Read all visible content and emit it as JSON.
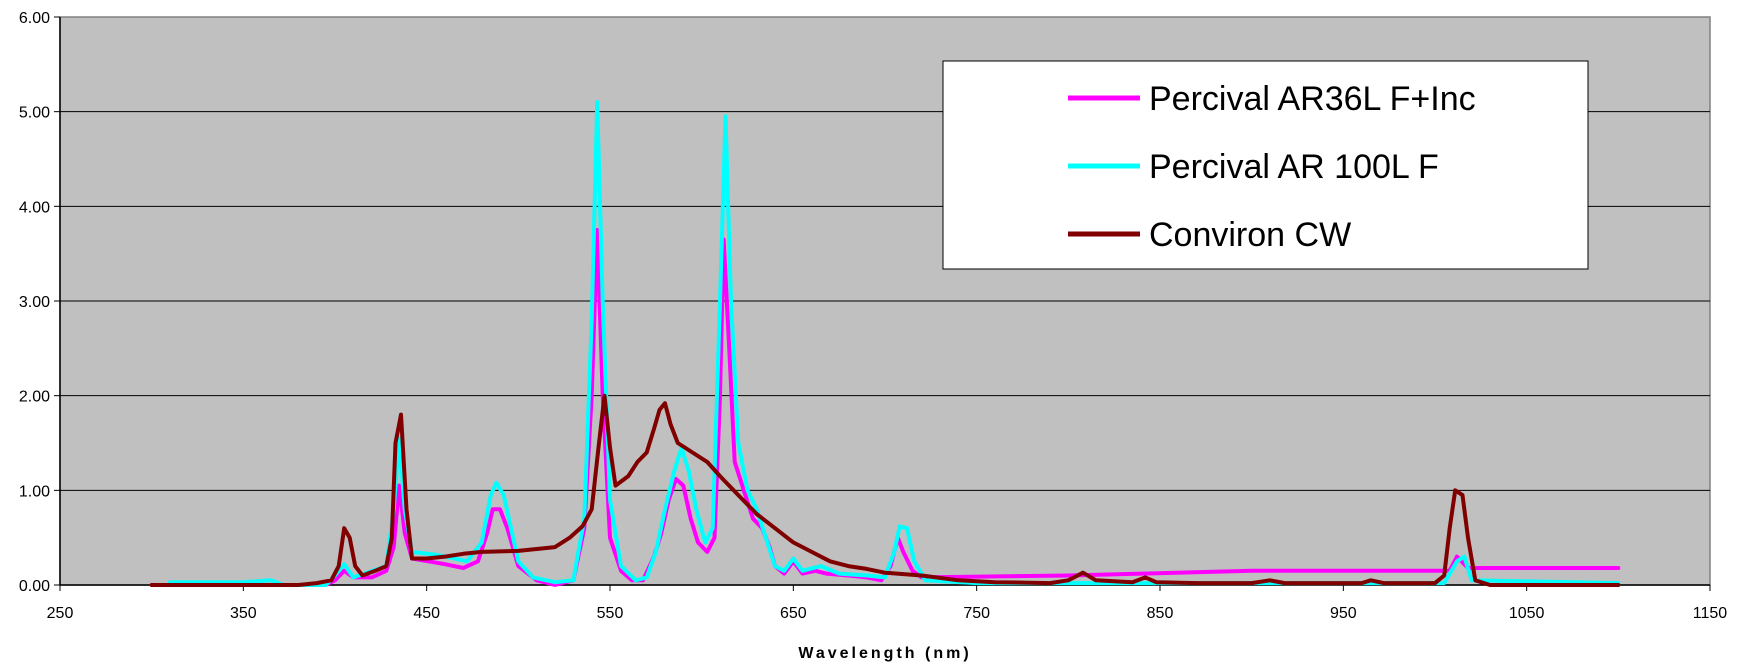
{
  "chart_data": {
    "type": "line",
    "title": "",
    "xlabel": "Wavelength (nm)",
    "ylabel": "",
    "xlim": [
      250,
      1150
    ],
    "ylim": [
      0,
      6
    ],
    "x_ticks": [
      "250",
      "350",
      "450",
      "550",
      "650",
      "750",
      "850",
      "950",
      "1050",
      "1150"
    ],
    "y_ticks": [
      "0.00",
      "1.00",
      "2.00",
      "3.00",
      "4.00",
      "5.00",
      "6.00"
    ],
    "grid": "horizontal major",
    "plot_background": "#c0c0c0",
    "legend_position": "top-right",
    "series": [
      {
        "name": "Percival AR36L F+Inc",
        "color": "#ff00ff",
        "points": [
          [
            300,
            0
          ],
          [
            395,
            0
          ],
          [
            400,
            0.05
          ],
          [
            405,
            0.15
          ],
          [
            410,
            0.08
          ],
          [
            420,
            0.08
          ],
          [
            428,
            0.15
          ],
          [
            432,
            0.4
          ],
          [
            435,
            1.05
          ],
          [
            438,
            0.55
          ],
          [
            442,
            0.28
          ],
          [
            460,
            0.22
          ],
          [
            470,
            0.18
          ],
          [
            478,
            0.25
          ],
          [
            483,
            0.55
          ],
          [
            486,
            0.8
          ],
          [
            490,
            0.8
          ],
          [
            494,
            0.6
          ],
          [
            500,
            0.2
          ],
          [
            510,
            0.05
          ],
          [
            520,
            0
          ],
          [
            530,
            0.05
          ],
          [
            536,
            0.6
          ],
          [
            540,
            2.0
          ],
          [
            543,
            3.75
          ],
          [
            546,
            2.0
          ],
          [
            550,
            0.5
          ],
          [
            556,
            0.15
          ],
          [
            562,
            0.05
          ],
          [
            568,
            0.05
          ],
          [
            574,
            0.3
          ],
          [
            578,
            0.55
          ],
          [
            582,
            0.9
          ],
          [
            586,
            1.12
          ],
          [
            590,
            1.05
          ],
          [
            594,
            0.7
          ],
          [
            598,
            0.45
          ],
          [
            603,
            0.35
          ],
          [
            607,
            0.5
          ],
          [
            610,
            2.0
          ],
          [
            612,
            3.65
          ],
          [
            615,
            2.5
          ],
          [
            618,
            1.3
          ],
          [
            623,
            1.0
          ],
          [
            628,
            0.7
          ],
          [
            633,
            0.6
          ],
          [
            637,
            0.4
          ],
          [
            640,
            0.2
          ],
          [
            645,
            0.12
          ],
          [
            650,
            0.25
          ],
          [
            655,
            0.12
          ],
          [
            662,
            0.15
          ],
          [
            668,
            0.12
          ],
          [
            680,
            0.1
          ],
          [
            690,
            0.08
          ],
          [
            698,
            0.05
          ],
          [
            703,
            0.2
          ],
          [
            707,
            0.5
          ],
          [
            710,
            0.35
          ],
          [
            715,
            0.15
          ],
          [
            720,
            0.08
          ],
          [
            800,
            0.1
          ],
          [
            840,
            0.12
          ],
          [
            900,
            0.15
          ],
          [
            1008,
            0.15
          ],
          [
            1012,
            0.3
          ],
          [
            1018,
            0.18
          ],
          [
            1100,
            0.18
          ]
        ]
      },
      {
        "name": "Percival AR 100L F",
        "color": "#00ffff",
        "points": [
          [
            310,
            0.03
          ],
          [
            350,
            0.03
          ],
          [
            365,
            0.05
          ],
          [
            372,
            0
          ],
          [
            395,
            0
          ],
          [
            400,
            0.1
          ],
          [
            405,
            0.22
          ],
          [
            410,
            0.08
          ],
          [
            428,
            0.2
          ],
          [
            432,
            0.8
          ],
          [
            435,
            1.55
          ],
          [
            438,
            0.8
          ],
          [
            442,
            0.35
          ],
          [
            455,
            0.32
          ],
          [
            465,
            0.28
          ],
          [
            472,
            0.25
          ],
          [
            480,
            0.45
          ],
          [
            485,
            0.95
          ],
          [
            488,
            1.08
          ],
          [
            492,
            0.95
          ],
          [
            496,
            0.6
          ],
          [
            500,
            0.25
          ],
          [
            508,
            0.08
          ],
          [
            520,
            0.03
          ],
          [
            530,
            0.05
          ],
          [
            536,
            0.7
          ],
          [
            540,
            2.8
          ],
          [
            543,
            5.1
          ],
          [
            546,
            3.0
          ],
          [
            550,
            0.9
          ],
          [
            556,
            0.2
          ],
          [
            564,
            0.05
          ],
          [
            570,
            0.08
          ],
          [
            575,
            0.35
          ],
          [
            580,
            0.8
          ],
          [
            585,
            1.2
          ],
          [
            589,
            1.45
          ],
          [
            593,
            1.2
          ],
          [
            597,
            0.8
          ],
          [
            602,
            0.45
          ],
          [
            606,
            0.6
          ],
          [
            610,
            3.0
          ],
          [
            613,
            4.95
          ],
          [
            616,
            3.0
          ],
          [
            620,
            1.5
          ],
          [
            625,
            1.0
          ],
          [
            630,
            0.8
          ],
          [
            635,
            0.5
          ],
          [
            640,
            0.2
          ],
          [
            645,
            0.15
          ],
          [
            650,
            0.28
          ],
          [
            655,
            0.15
          ],
          [
            665,
            0.2
          ],
          [
            675,
            0.12
          ],
          [
            690,
            0.1
          ],
          [
            700,
            0.08
          ],
          [
            705,
            0.35
          ],
          [
            708,
            0.62
          ],
          [
            712,
            0.6
          ],
          [
            716,
            0.25
          ],
          [
            722,
            0.05
          ],
          [
            750,
            0.02
          ],
          [
            800,
            0.02
          ],
          [
            850,
            0.02
          ],
          [
            1005,
            0.02
          ],
          [
            1012,
            0.25
          ],
          [
            1016,
            0.3
          ],
          [
            1020,
            0.05
          ],
          [
            1100,
            0.02
          ]
        ]
      },
      {
        "name": "Conviron CW",
        "color": "#800000",
        "points": [
          [
            300,
            0
          ],
          [
            380,
            0
          ],
          [
            390,
            0.02
          ],
          [
            398,
            0.05
          ],
          [
            402,
            0.2
          ],
          [
            405,
            0.6
          ],
          [
            408,
            0.5
          ],
          [
            411,
            0.2
          ],
          [
            415,
            0.1
          ],
          [
            422,
            0.15
          ],
          [
            428,
            0.2
          ],
          [
            431,
            0.5
          ],
          [
            433,
            1.5
          ],
          [
            436,
            1.8
          ],
          [
            439,
            0.8
          ],
          [
            442,
            0.28
          ],
          [
            450,
            0.28
          ],
          [
            460,
            0.3
          ],
          [
            470,
            0.33
          ],
          [
            480,
            0.35
          ],
          [
            500,
            0.36
          ],
          [
            510,
            0.38
          ],
          [
            520,
            0.4
          ],
          [
            528,
            0.5
          ],
          [
            535,
            0.62
          ],
          [
            540,
            0.8
          ],
          [
            544,
            1.5
          ],
          [
            547,
            2.0
          ],
          [
            550,
            1.45
          ],
          [
            553,
            1.05
          ],
          [
            560,
            1.15
          ],
          [
            565,
            1.3
          ],
          [
            570,
            1.4
          ],
          [
            574,
            1.65
          ],
          [
            577,
            1.85
          ],
          [
            580,
            1.92
          ],
          [
            583,
            1.7
          ],
          [
            587,
            1.5
          ],
          [
            595,
            1.4
          ],
          [
            603,
            1.3
          ],
          [
            610,
            1.15
          ],
          [
            620,
            0.95
          ],
          [
            630,
            0.75
          ],
          [
            640,
            0.6
          ],
          [
            650,
            0.45
          ],
          [
            660,
            0.35
          ],
          [
            670,
            0.25
          ],
          [
            680,
            0.2
          ],
          [
            690,
            0.17
          ],
          [
            700,
            0.13
          ],
          [
            720,
            0.1
          ],
          [
            740,
            0.05
          ],
          [
            760,
            0.03
          ],
          [
            790,
            0.02
          ],
          [
            800,
            0.05
          ],
          [
            808,
            0.13
          ],
          [
            815,
            0.05
          ],
          [
            835,
            0.03
          ],
          [
            842,
            0.08
          ],
          [
            848,
            0.03
          ],
          [
            870,
            0.02
          ],
          [
            900,
            0.02
          ],
          [
            910,
            0.05
          ],
          [
            918,
            0.02
          ],
          [
            960,
            0.02
          ],
          [
            965,
            0.05
          ],
          [
            972,
            0.02
          ],
          [
            1000,
            0.02
          ],
          [
            1005,
            0.1
          ],
          [
            1008,
            0.6
          ],
          [
            1011,
            1.0
          ],
          [
            1015,
            0.95
          ],
          [
            1018,
            0.5
          ],
          [
            1022,
            0.05
          ],
          [
            1030,
            0
          ],
          [
            1100,
            0
          ]
        ]
      }
    ]
  }
}
